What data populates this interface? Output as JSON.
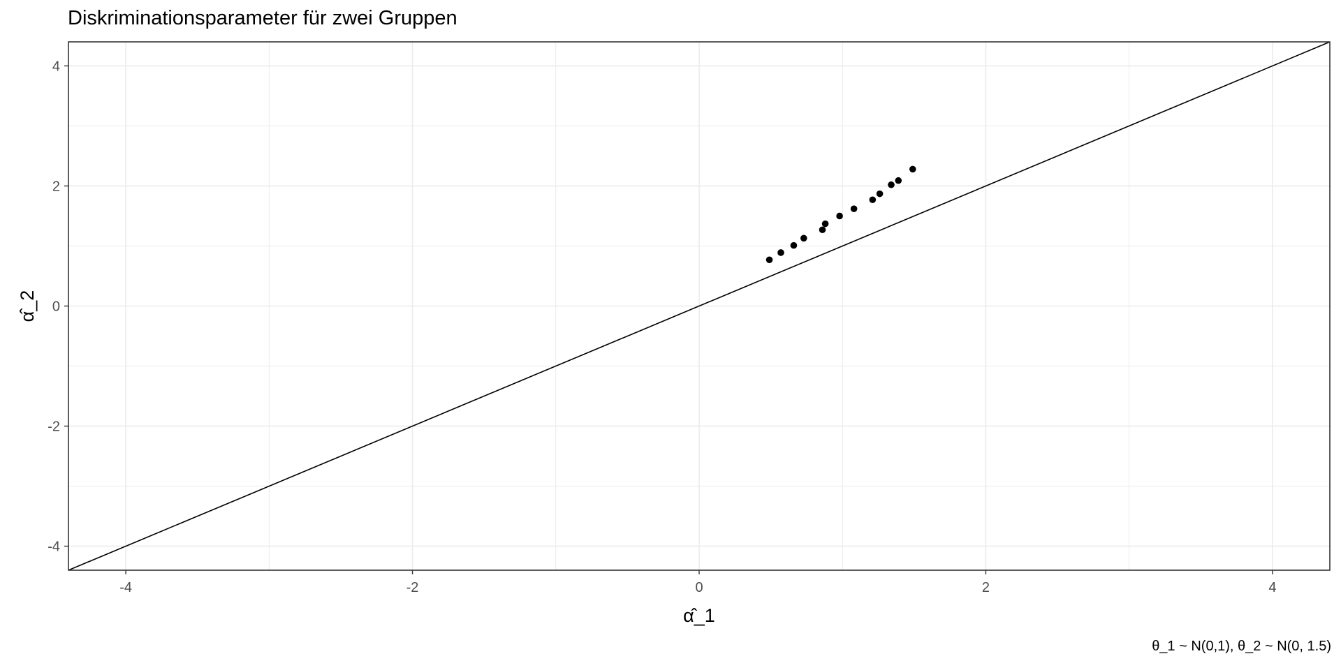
{
  "chart_data": {
    "type": "scatter",
    "title": "Diskriminationsparameter für zwei Gruppen",
    "xlabel": "α̂_1",
    "ylabel": "α̂_2",
    "caption": "θ_1 ~ N(0,1), θ_2 ~ N(0, 1.5)",
    "xlim": [
      -4.4,
      4.4
    ],
    "ylim": [
      -4.4,
      4.4
    ],
    "x_ticks": [
      -4,
      -2,
      0,
      2,
      4
    ],
    "y_ticks": [
      -4,
      -2,
      0,
      2,
      4
    ],
    "x_tick_labels": [
      "-4",
      "-2",
      "0",
      "2",
      "4"
    ],
    "y_tick_labels": [
      "-4",
      "-2",
      "0",
      "2",
      "4"
    ],
    "grid": true,
    "reference_line": {
      "slope": 1,
      "intercept": 0
    },
    "points": [
      {
        "x": 0.49,
        "y": 0.77
      },
      {
        "x": 0.57,
        "y": 0.89
      },
      {
        "x": 0.66,
        "y": 1.01
      },
      {
        "x": 0.73,
        "y": 1.13
      },
      {
        "x": 0.86,
        "y": 1.27
      },
      {
        "x": 0.88,
        "y": 1.37
      },
      {
        "x": 0.98,
        "y": 1.5
      },
      {
        "x": 1.08,
        "y": 1.62
      },
      {
        "x": 1.21,
        "y": 1.77
      },
      {
        "x": 1.26,
        "y": 1.87
      },
      {
        "x": 1.34,
        "y": 2.02
      },
      {
        "x": 1.39,
        "y": 2.09
      },
      {
        "x": 1.49,
        "y": 2.28
      }
    ],
    "point_color": "#000000",
    "grid_color": "#ebebeb",
    "panel_border_color": "#333333"
  }
}
